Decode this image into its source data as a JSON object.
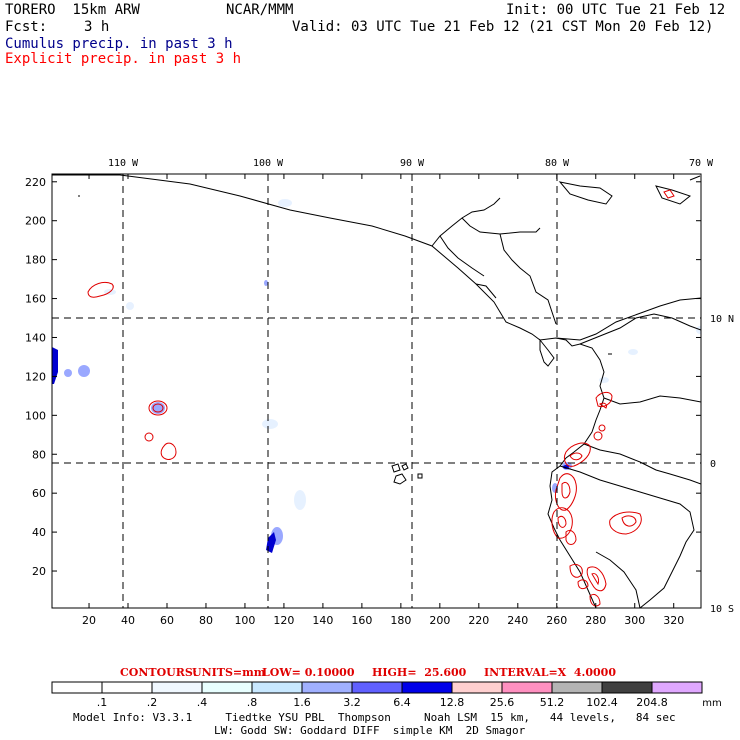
{
  "header": {
    "model": "TORERO  15km ARW",
    "org": "NCAR/MMM",
    "init": "Init: 00 UTC Tue 21 Feb 12",
    "fcst_label": "Fcst:",
    "fcst_value": "3 h",
    "valid": "Valid: 03 UTC Tue 21 Feb 12 (21 CST Mon 20 Feb 12)",
    "cumulus_label": "Cumulus precip. in past 3 h",
    "explicit_label": "Explicit precip. in past 3 h"
  },
  "colors": {
    "frame": "#000000",
    "cumulus_light": "#dfefff",
    "cumulus_mid": "#8080ff",
    "cumulus_dark": "#0000c8",
    "explicit": "#e00000"
  },
  "map": {
    "top_lon_labels": [
      "110 W",
      "100 W",
      "90 W",
      "80 W",
      "70 W"
    ],
    "right_lat_labels": [
      "10 N",
      "0",
      "10 S"
    ],
    "y_ticks": [
      "220",
      "200",
      "180",
      "160",
      "140",
      "120",
      "100",
      "80",
      "60",
      "40",
      "20"
    ],
    "x_ticks": [
      "20",
      "40",
      "60",
      "80",
      "100",
      "120",
      "140",
      "160",
      "180",
      "200",
      "220",
      "240",
      "260",
      "280",
      "300",
      "320"
    ],
    "xlim": [
      1,
      334
    ],
    "ylim": [
      1,
      224
    ]
  },
  "contours": {
    "title": "CONTOURS:",
    "units": "UNITS=mm",
    "low": "LOW= 0.10000",
    "high": "HIGH=  25.600",
    "interval": "INTERVAL=X  4.0000"
  },
  "colorbar": {
    "colors": [
      "#ffffff",
      "#ffffff",
      "#f0f8ff",
      "#e8ffff",
      "#c8e8ff",
      "#a0b0ff",
      "#6060ff",
      "#0000e8",
      "#ffd0d0",
      "#ff90c0",
      "#b4b4b4",
      "#404040",
      "#e0a8ff"
    ],
    "labels": [
      ".1",
      ".2",
      ".4",
      ".8",
      "1.6",
      "3.2",
      "6.4",
      "12.8",
      "25.6",
      "51.2",
      "102.4",
      "204.8"
    ],
    "unit": "mm"
  },
  "model_info": {
    "line1": "Model Info: V3.3.1     Tiedtke YSU PBL  Thompson     Noah LSM  15 km,   44 levels,   84 sec",
    "line2": "LW: Godd SW: Goddard DIFF  simple KM  2D Smagor"
  }
}
